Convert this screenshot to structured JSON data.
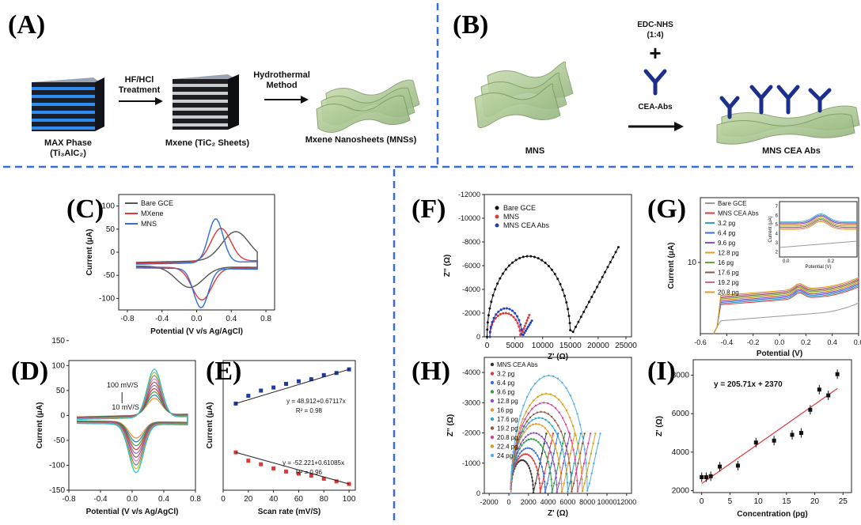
{
  "panels": {
    "A": {
      "label": "(A)",
      "step1": "HF/HCl",
      "step1b": "Treatment",
      "step2": "Hydrothermal",
      "step2b": "Method",
      "max_phase": "MAX Phase",
      "max_formula": "(Ti₃AlC₂)",
      "mxene": "Mxene (TiC₂ Sheets)",
      "mns": "Mxene Nanosheets (MNSs)"
    },
    "B": {
      "label": "(B)",
      "edc": "EDC-NHS",
      "ratio": "(1:4)",
      "plus": "+",
      "abs": "CEA-Abs",
      "mns": "MNS",
      "product": "MNS CEA Abs"
    }
  },
  "chart_data": [
    {
      "id": "C",
      "label": "(C)",
      "type": "line",
      "xlabel": "Potential (V v/s Ag/AgCl)",
      "ylabel": "Current (μA)",
      "xlim": [
        -0.9,
        0.9
      ],
      "ylim": [
        -125,
        125
      ],
      "xticks": [
        "-0.8",
        "-0.4",
        "0.0",
        "0.4",
        "0.8"
      ],
      "yticks": [
        "100",
        "50",
        "0",
        "-50",
        "-100"
      ],
      "legend": [
        "Bare GCE",
        "MXene",
        "MNS"
      ],
      "colors": [
        "#555555",
        "#e0393b",
        "#2f6fd6"
      ]
    },
    {
      "id": "D",
      "label": "(D)",
      "type": "line",
      "xlabel": "Potential (V v/s Ag/AgCl)",
      "ylabel": "Current (μA)",
      "xlim": [
        -0.8,
        0.8
      ],
      "ylim": [
        -150,
        110
      ],
      "xticks": [
        "-0.8",
        "-0.4",
        "0.0",
        "0.4",
        "0.8"
      ],
      "yticks": [
        "150",
        "100",
        "50",
        "0",
        "-50",
        "-100",
        "-150"
      ],
      "annotations": [
        "100 mV/S",
        "10 mV/S"
      ]
    },
    {
      "id": "E",
      "label": "(E)",
      "type": "scatter",
      "xlabel": "Scan rate (mV/S)",
      "ylabel": "Current (μA)",
      "xlim": [
        0,
        105
      ],
      "ylim": [
        -120,
        130
      ],
      "xticks": [
        "0",
        "20",
        "40",
        "60",
        "80",
        "100"
      ],
      "series": [
        {
          "x": [
            10,
            20,
            30,
            40,
            50,
            60,
            70,
            80,
            90,
            100
          ],
          "y": [
            47,
            62,
            72,
            78,
            85,
            90,
            94,
            102,
            106,
            113
          ]
        },
        {
          "x": [
            10,
            20,
            30,
            40,
            50,
            60,
            70,
            80,
            90,
            100
          ],
          "y": [
            -47,
            -63,
            -70,
            -78,
            -84,
            -88,
            -92,
            -98,
            -103,
            -108
          ]
        }
      ],
      "eq1": "y = 48.912+0.67117x",
      "r1": "R² = 0.98",
      "eq2": "y = -52.221+0.61085x",
      "r2": "R² = 0.96"
    },
    {
      "id": "F",
      "label": "(F)",
      "type": "scatter",
      "xlabel": "Z' (Ω)",
      "ylabel": "Z'' (Ω)",
      "xlim": [
        -500,
        26000
      ],
      "ylim": [
        0,
        -12000
      ],
      "xticks": [
        "0",
        "5000",
        "10000",
        "15000",
        "20000",
        "25000"
      ],
      "yticks": [
        "-12000",
        "-10000",
        "-8000",
        "-6000",
        "-4000",
        "-2000",
        "0"
      ],
      "legend": [
        "Bare GCE",
        "MNS",
        "MNS CEA Abs"
      ],
      "colors": [
        "#111111",
        "#e0393b",
        "#1f3fbf"
      ]
    },
    {
      "id": "G",
      "label": "(G)",
      "type": "line",
      "xlabel": "Potential (V)",
      "ylabel": "Current (μA)",
      "xlim": [
        -0.6,
        0.6
      ],
      "ylim": [
        -1,
        20
      ],
      "xticks": [
        "-0.6",
        "-0.4",
        "-0.2",
        "0.0",
        "0.2",
        "0.4",
        "0.6"
      ],
      "yticks": [
        "10"
      ],
      "legend": [
        "Bare GCE",
        "MNS CEA Abs",
        "3.2 pg",
        "6.4 pg",
        "9.6 pg",
        "12.8 pg",
        "16 pg",
        "17.6 pg",
        "19.2 pg",
        "20.8 pg"
      ],
      "colors": [
        "#999999",
        "#e0393b",
        "#2aa7c8",
        "#3b6fd0",
        "#8b4fc8",
        "#e89a1e",
        "#6aa636",
        "#8a5a3c",
        "#c86b9a",
        "#d4a017"
      ],
      "inset": {
        "ylabel": "Current (μA)",
        "xlabel": "Potential (V)",
        "yticks": [
          "7",
          "6",
          "5",
          "4",
          "3",
          "2"
        ],
        "xticks": [
          "0.0",
          "0.2"
        ]
      }
    },
    {
      "id": "H",
      "label": "(H)",
      "type": "scatter",
      "xlabel": "Z' (Ω)",
      "ylabel": "Z'' (Ω)",
      "xlim": [
        -2500,
        12500
      ],
      "ylim": [
        0,
        -4500
      ],
      "xticks": [
        "-2000",
        "0",
        "2000",
        "4000",
        "6000",
        "8000",
        "10000",
        "12000"
      ],
      "yticks": [
        "-4000",
        "-3000",
        "-2000",
        "-1000",
        "0"
      ],
      "legend": [
        "MNS CEA Abs",
        "3.2 pg",
        "6.4 pg",
        "9.6 pg",
        "12.8 pg",
        "16 pg",
        "17.6 pg",
        "19.2 pg",
        "20.8 pg",
        "22.4 pg",
        "24 pg"
      ],
      "colors": [
        "#333333",
        "#e0393b",
        "#3b6fd0",
        "#2e9e4e",
        "#8b4fc8",
        "#e89a1e",
        "#2aa7c8",
        "#8a5a3c",
        "#d4449a",
        "#d4a017",
        "#4fb0e6"
      ],
      "diameters": [
        2300,
        3000,
        3500,
        4200,
        4700,
        5200,
        5800,
        6200,
        6800,
        7300,
        7800
      ],
      "heights": [
        1100,
        1300,
        1500,
        1800,
        2000,
        2300,
        2500,
        2700,
        3000,
        3300,
        3900
      ]
    },
    {
      "id": "I",
      "label": "(I)",
      "type": "scatter",
      "xlabel": "Concentration (pg)",
      "ylabel": "Z' (Ω)",
      "xlim": [
        -1.5,
        26.5
      ],
      "ylim": [
        1900,
        8800
      ],
      "xticks": [
        "0",
        "5",
        "10",
        "15",
        "20",
        "25"
      ],
      "yticks": [
        "8000",
        "6000",
        "4000",
        "2000"
      ],
      "series": [
        {
          "x": [
            0,
            0.8,
            1.6,
            3.2,
            6.4,
            9.6,
            12.8,
            16,
            17.6,
            19.2,
            20.8,
            22.4,
            24
          ],
          "y": [
            2700,
            2700,
            2750,
            3250,
            3300,
            4500,
            4600,
            4900,
            5000,
            6200,
            7250,
            6950,
            8050
          ]
        }
      ],
      "equation": "y = 205.71x + 2370"
    }
  ]
}
